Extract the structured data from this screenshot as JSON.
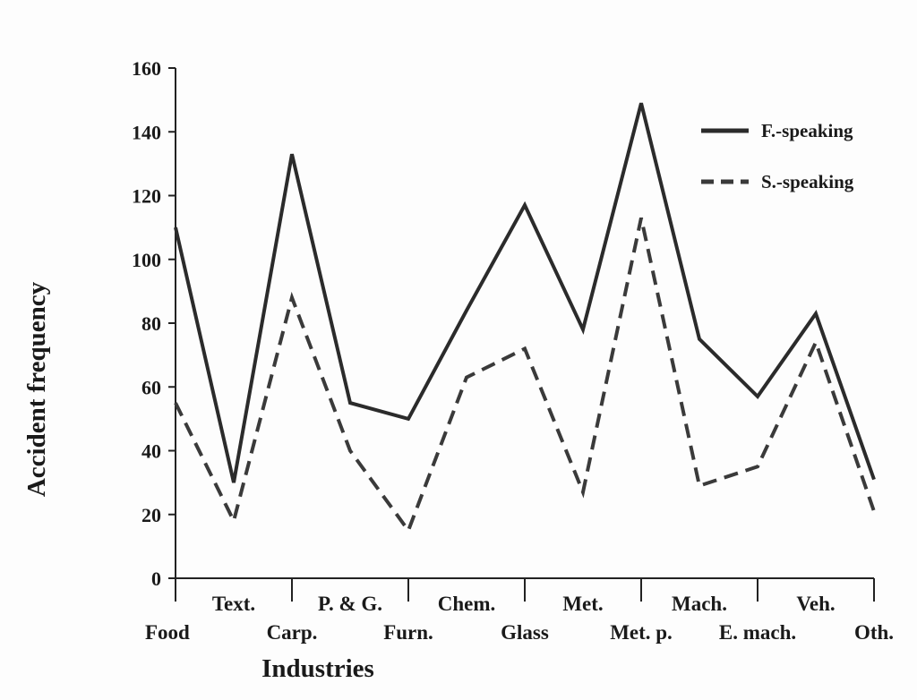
{
  "chart_data": {
    "type": "line",
    "title": "",
    "xlabel": "Industries",
    "ylabel": "Accident frequency",
    "ylim": [
      0,
      160
    ],
    "yticks": [
      0,
      20,
      40,
      60,
      80,
      100,
      120,
      140,
      160
    ],
    "categories": [
      "Food",
      "Text.",
      "Carp.",
      "P. & G.",
      "Furn.",
      "Chem.",
      "Glass",
      "Met.",
      "Met. p.",
      "Mach.",
      "E. mach.",
      "Veh.",
      "Oth."
    ],
    "grid": false,
    "legend_position": "top-right",
    "series": [
      {
        "name": "F.-speaking",
        "style": "solid",
        "color": "#2b2b2b",
        "values": [
          110,
          30,
          133,
          55,
          50,
          84,
          117,
          78,
          149,
          75,
          57,
          83,
          31
        ]
      },
      {
        "name": "S.-speaking",
        "style": "dashed",
        "color": "#3a3a3a",
        "values": [
          55,
          18,
          88,
          40,
          15,
          63,
          72,
          27,
          113,
          29,
          35,
          74,
          21
        ]
      }
    ]
  }
}
